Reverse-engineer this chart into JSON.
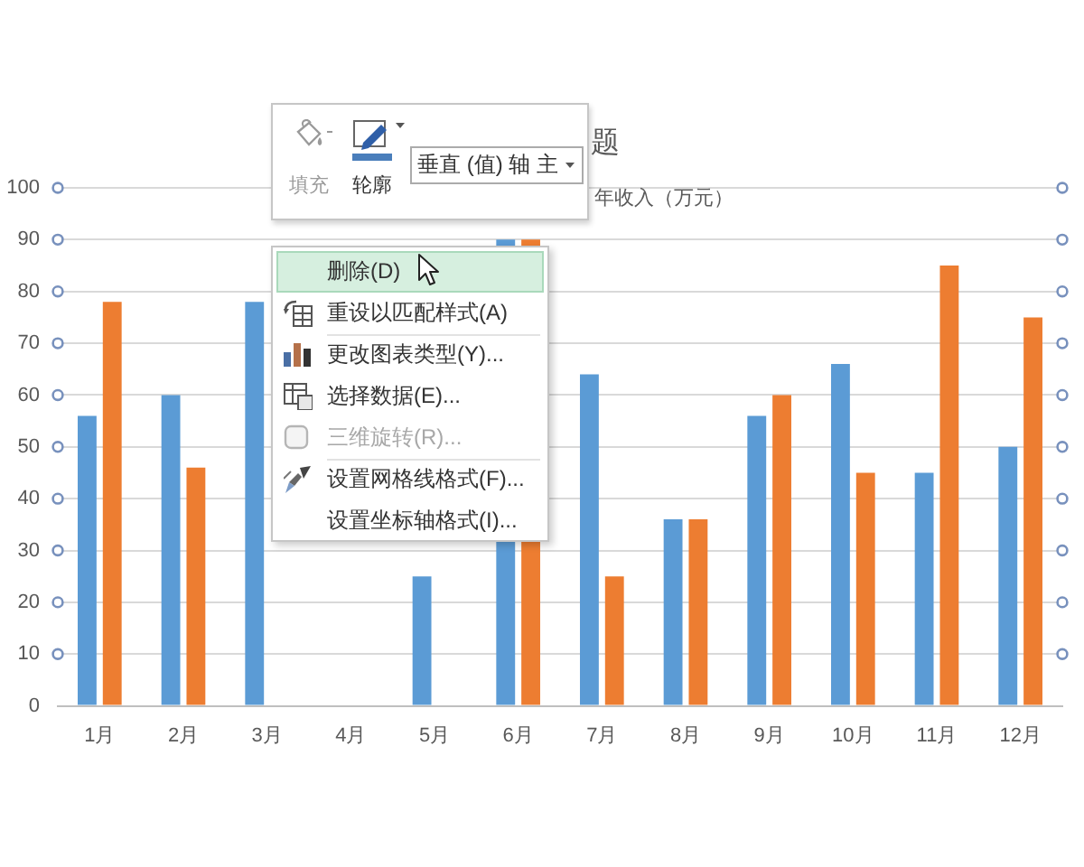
{
  "chart_data": {
    "type": "bar",
    "title": "题",
    "subtitle": "年收入（万元）",
    "categories": [
      "1月",
      "2月",
      "3月",
      "4月",
      "5月",
      "6月",
      "7月",
      "8月",
      "9月",
      "10月",
      "11月",
      "12月"
    ],
    "series": [
      {
        "color": "#5b9bd5",
        "values": [
          56,
          60,
          78,
          null,
          25,
          90,
          64,
          36,
          56,
          66,
          45,
          50
        ]
      },
      {
        "color": "#ed7d31",
        "values": [
          78,
          46,
          null,
          null,
          null,
          90,
          25,
          36,
          60,
          45,
          85,
          75
        ]
      }
    ],
    "ylim": [
      0,
      100
    ],
    "yticks": [
      0,
      10,
      20,
      30,
      40,
      50,
      60,
      70,
      80,
      90,
      100
    ],
    "grid": "y",
    "annotations": [
      "填充",
      "轮廓",
      "垂直 (值) 轴 主",
      "删除(D)",
      "重设以匹配样式(A)",
      "更改图表类型(Y)...",
      "选择数据(E)...",
      "三维旋转(R)...",
      "设置网格线格式(F)...",
      "设置坐标轴格式(I)..."
    ]
  }
}
